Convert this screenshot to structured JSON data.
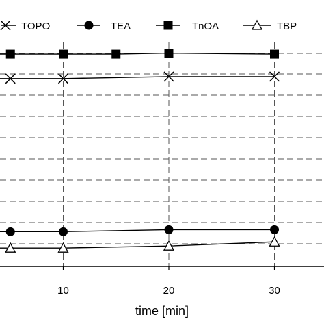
{
  "chart_data": {
    "type": "line",
    "title": "",
    "xlabel": "time [min]",
    "ylabel": "",
    "xlim": [
      -3,
      40
    ],
    "ylim": [
      0,
      100
    ],
    "xticks": [
      10,
      20,
      30
    ],
    "xtick_labels": [
      "10",
      "20",
      "30"
    ],
    "grid": true,
    "legend_position": "top",
    "series": [
      {
        "name": "TOPO",
        "marker": "x",
        "color": "#000000",
        "x": [
          5,
          10,
          20,
          30
        ],
        "y": [
          92,
          92,
          93,
          93
        ]
      },
      {
        "name": "TEA",
        "marker": "circle",
        "color": "#000000",
        "x": [
          5,
          10,
          20,
          30
        ],
        "y": [
          17,
          17,
          18,
          18
        ]
      },
      {
        "name": "TnOA",
        "marker": "square",
        "color": "#000000",
        "x": [
          5,
          10,
          15,
          20,
          30
        ],
        "y": [
          104,
          104,
          104,
          104.5,
          104
        ]
      },
      {
        "name": "TBP",
        "marker": "triangle",
        "color": "#000000",
        "x": [
          5,
          10,
          20,
          30
        ],
        "y": [
          9,
          9,
          10,
          12
        ]
      }
    ]
  }
}
